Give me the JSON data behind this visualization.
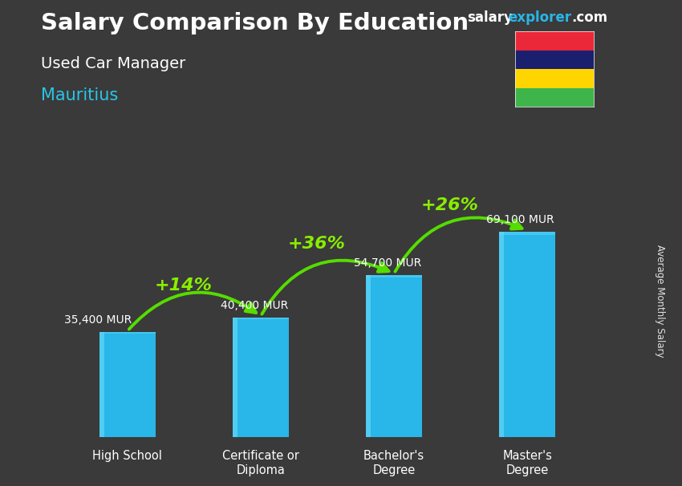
{
  "title_main": "Salary Comparison By Education",
  "title_sub": "Used Car Manager",
  "title_country": "Mauritius",
  "watermark_salary": "salary",
  "watermark_explorer": "explorer",
  "watermark_com": ".com",
  "ylabel": "Average Monthly Salary",
  "categories": [
    "High School",
    "Certificate or\nDiploma",
    "Bachelor's\nDegree",
    "Master's\nDegree"
  ],
  "values": [
    35400,
    40400,
    54700,
    69100
  ],
  "labels": [
    "35,400 MUR",
    "40,400 MUR",
    "54,700 MUR",
    "69,100 MUR"
  ],
  "pct_labels": [
    "+14%",
    "+36%",
    "+26%"
  ],
  "bar_color": "#29b6e8",
  "bar_edge_color": "#1a9dd4",
  "bg_color": "#3a3a3a",
  "title_color": "#ffffff",
  "subtitle_color": "#ffffff",
  "country_color": "#29c5e8",
  "label_color": "#ffffff",
  "pct_color": "#88ee00",
  "arrow_color": "#55dd00",
  "watermark_s_color": "#ffffff",
  "watermark_e_color": "#29b6e8",
  "watermark_c_color": "#ffffff",
  "flag_colors": [
    "#EA2839",
    "#1A206D",
    "#FFD500",
    "#3DB54A"
  ],
  "ylim_max": 85000,
  "bar_width": 0.42
}
